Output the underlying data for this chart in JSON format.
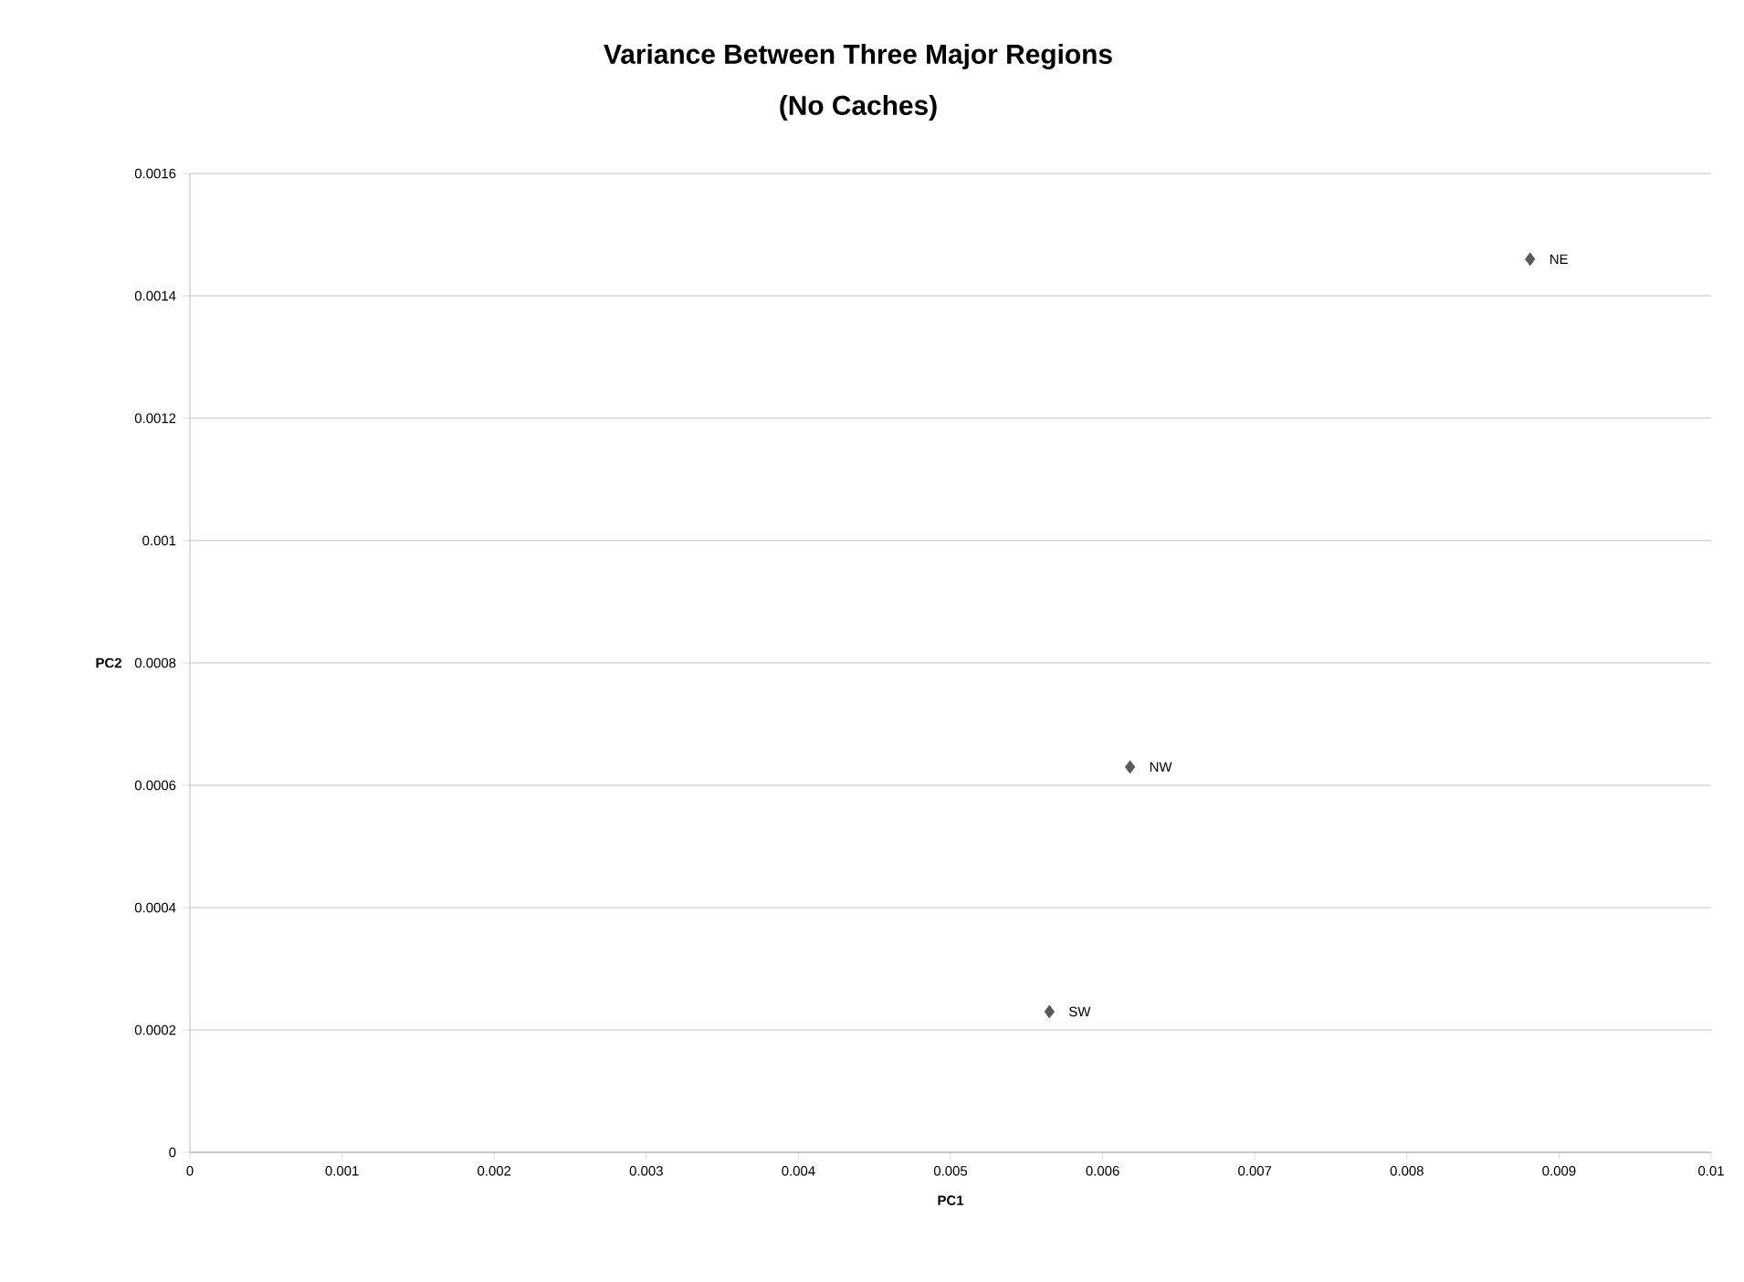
{
  "chart_data": {
    "type": "scatter",
    "title": "Variance Between Three Major Regions",
    "subtitle": "(No Caches)",
    "xlabel": "PC1",
    "ylabel": "PC2",
    "x": [
      0.00881,
      0.00618,
      0.00565
    ],
    "series": [
      {
        "color": "#595959",
        "values": [
          0.00146,
          0.00063,
          0.00023
        ]
      }
    ],
    "annotations": [
      {
        "text": "NE",
        "x": 0.00881,
        "y": 0.00146
      },
      {
        "text": "NW",
        "x": 0.00618,
        "y": 0.00063
      },
      {
        "text": "SW",
        "x": 0.00565,
        "y": 0.00023
      }
    ],
    "xlim": [
      0,
      0.01
    ],
    "xticks": [
      0,
      0.001,
      0.002,
      0.003,
      0.004,
      0.005,
      0.006,
      0.007,
      0.008,
      0.009,
      0.01
    ],
    "ylim": [
      0,
      0.0016
    ],
    "yticks": [
      0,
      0.0002,
      0.0004,
      0.0006,
      0.0008,
      0.001,
      0.0012,
      0.0014,
      0.0016
    ],
    "grid": "y",
    "marker": "diamond"
  }
}
